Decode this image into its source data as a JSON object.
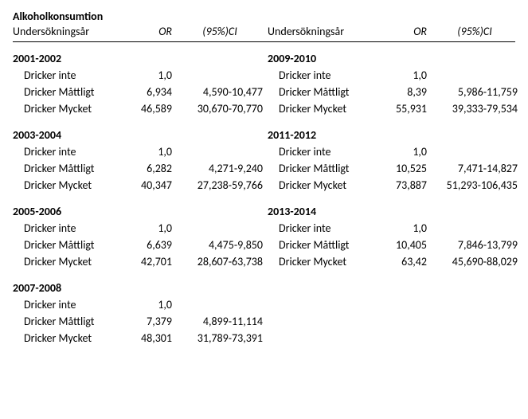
{
  "title": "Alkoholkonsumtion",
  "header": {
    "year_label": "Undersökningsår",
    "or_label": "OR",
    "ci_label": "(95%)CI"
  },
  "row_labels": {
    "none": "Dricker inte",
    "moderate": "Dricker Måttligt",
    "heavy": "Dricker Mycket"
  },
  "left": [
    {
      "period": "2001-2002",
      "none_or": "1,0",
      "none_ci": "",
      "mod_or": "6,934",
      "mod_ci": "4,590-10,477",
      "heavy_or": "46,589",
      "heavy_ci": "30,670-70,770"
    },
    {
      "period": "2003-2004",
      "none_or": "1,0",
      "none_ci": "",
      "mod_or": "6,282",
      "mod_ci": "4,271-9,240",
      "heavy_or": "40,347",
      "heavy_ci": "27,238-59,766"
    },
    {
      "period": "2005-2006",
      "none_or": "1,0",
      "none_ci": "",
      "mod_or": "6,639",
      "mod_ci": "4,475-9,850",
      "heavy_or": "42,701",
      "heavy_ci": "28,607-63,738"
    },
    {
      "period": "2007-2008",
      "none_or": "1,0",
      "none_ci": "",
      "mod_or": "7,379",
      "mod_ci": "4,899-11,114",
      "heavy_or": "48,301",
      "heavy_ci": "31,789-73,391"
    }
  ],
  "right": [
    {
      "period": "2009-2010",
      "none_or": "1,0",
      "none_ci": "",
      "mod_or": "8,39",
      "mod_ci": "5,986-11,759",
      "heavy_or": "55,931",
      "heavy_ci": "39,333-79,534"
    },
    {
      "period": "2011-2012",
      "none_or": "1,0",
      "none_ci": "",
      "mod_or": "10,525",
      "mod_ci": "7,471-14,827",
      "heavy_or": "73,887",
      "heavy_ci": "51,293-106,435"
    },
    {
      "period": "2013-2014",
      "none_or": "1,0",
      "none_ci": "",
      "mod_or": "10,405",
      "mod_ci": "7,846-13,799",
      "heavy_or": "63,42",
      "heavy_ci": "45,690-88,029"
    }
  ]
}
